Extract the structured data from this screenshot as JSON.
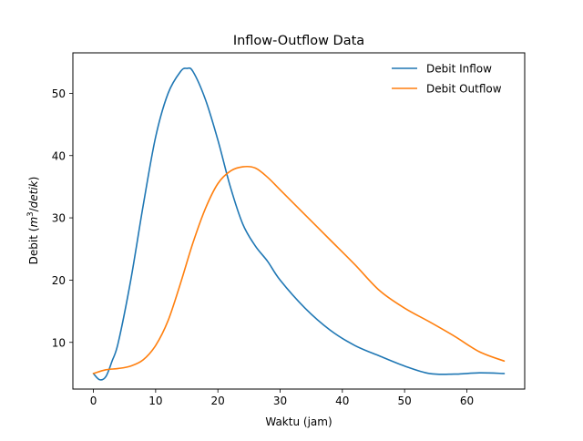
{
  "chart_data": {
    "type": "line",
    "title": "Inflow-Outflow Data",
    "xlabel": "Waktu (jam)",
    "ylabel": {
      "prefix": "Debit (",
      "var_m": "m",
      "sup": "3",
      "sep": "/",
      "var_detik": "detik",
      "suffix": ")"
    },
    "xlim": [
      -3.3,
      69.3
    ],
    "ylim": [
      2.5,
      56.5
    ],
    "xticks": [
      0,
      10,
      20,
      30,
      40,
      50,
      60
    ],
    "yticks": [
      10,
      20,
      30,
      40,
      50
    ],
    "grid": false,
    "legend_position": "top-right",
    "series": [
      {
        "name": "Debit Inflow",
        "color": "#1f77b4",
        "x": [
          0,
          1,
          2,
          3,
          4,
          6,
          8,
          10,
          12,
          14,
          15,
          16,
          18,
          20,
          22,
          24,
          26,
          28,
          30,
          34,
          38,
          42,
          46,
          50,
          54,
          58,
          62,
          66
        ],
        "y": [
          5.0,
          4.0,
          4.5,
          7.0,
          10.0,
          20.0,
          32.0,
          43.0,
          50.0,
          53.5,
          54.0,
          53.5,
          49.0,
          42.5,
          35.0,
          29.0,
          25.5,
          23.0,
          20.0,
          15.5,
          12.0,
          9.5,
          7.8,
          6.2,
          5.0,
          4.9,
          5.1,
          5.0
        ]
      },
      {
        "name": "Debit Outflow",
        "color": "#ff7f0e",
        "x": [
          0,
          2,
          4,
          6,
          8,
          10,
          12,
          14,
          16,
          18,
          20,
          22,
          24,
          26,
          28,
          30,
          34,
          38,
          42,
          46,
          50,
          54,
          58,
          62,
          66
        ],
        "y": [
          5.0,
          5.6,
          5.8,
          6.2,
          7.2,
          9.5,
          13.5,
          19.5,
          26.0,
          31.5,
          35.5,
          37.5,
          38.2,
          38.0,
          36.5,
          34.5,
          30.5,
          26.5,
          22.5,
          18.3,
          15.5,
          13.3,
          11.0,
          8.5,
          7.0
        ]
      }
    ]
  }
}
